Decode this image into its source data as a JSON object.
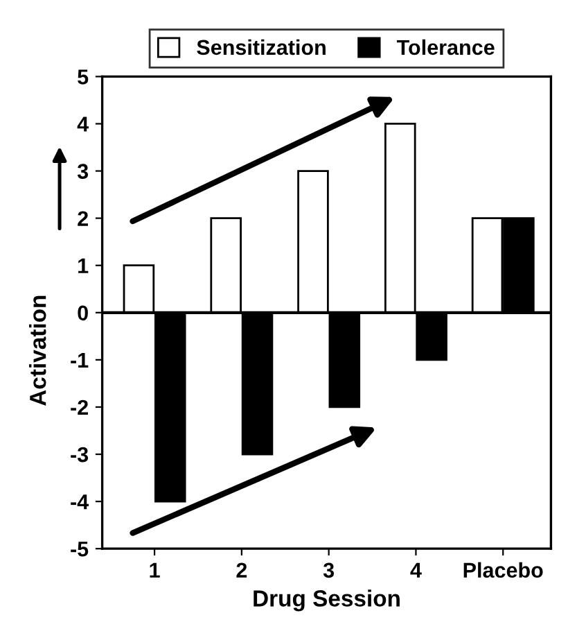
{
  "chart_data": {
    "type": "bar",
    "xlabel": "Drug Session",
    "ylabel": "Activation",
    "categories": [
      "1",
      "2",
      "3",
      "4",
      "Placebo"
    ],
    "series": [
      {
        "name": "Sensitization",
        "color": "#ffffff",
        "values": [
          1,
          2,
          3,
          4,
          2
        ]
      },
      {
        "name": "Tolerance",
        "color": "#000000",
        "values": [
          -4,
          -3,
          -2,
          -1,
          2
        ]
      }
    ],
    "ylim": [
      -5,
      5
    ],
    "yticks": [
      -5,
      -4,
      -3,
      -2,
      -1,
      0,
      1,
      2,
      3,
      4,
      5
    ],
    "ref_lines": [
      {
        "axis": "y",
        "value": 0,
        "color": "#000000"
      }
    ],
    "grid": false,
    "legend": "top"
  }
}
